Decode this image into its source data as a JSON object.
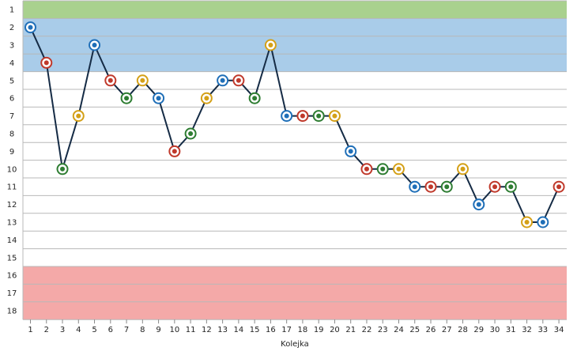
{
  "chart_data": {
    "type": "line",
    "title": "",
    "xlabel": "Kolejka",
    "ylabel": "",
    "x": [
      1,
      2,
      3,
      4,
      5,
      6,
      7,
      8,
      9,
      10,
      11,
      12,
      13,
      14,
      15,
      16,
      17,
      18,
      19,
      20,
      21,
      22,
      23,
      24,
      25,
      26,
      27,
      28,
      29,
      30,
      31,
      32,
      33,
      34
    ],
    "y": [
      2,
      4,
      10,
      7,
      3,
      5,
      6,
      5,
      6,
      9,
      8,
      6,
      5,
      5,
      6,
      3,
      7,
      7,
      7,
      7,
      9,
      10,
      10,
      10,
      11,
      11,
      11,
      10,
      12,
      11,
      11,
      13,
      13,
      11
    ],
    "ylim": [
      1,
      18
    ],
    "y_inverted": true,
    "y_ticks": [
      1,
      2,
      3,
      4,
      5,
      6,
      7,
      8,
      9,
      10,
      11,
      12,
      13,
      14,
      15,
      16,
      17,
      18
    ],
    "x_ticks": [
      1,
      2,
      3,
      4,
      5,
      6,
      7,
      8,
      9,
      10,
      11,
      12,
      13,
      14,
      15,
      16,
      17,
      18,
      19,
      20,
      21,
      22,
      23,
      24,
      25,
      26,
      27,
      28,
      29,
      30,
      31,
      32,
      33,
      34
    ],
    "grid": true,
    "zones": [
      {
        "from": 1,
        "to": 1,
        "color": "#a9d18e"
      },
      {
        "from": 2,
        "to": 4,
        "color": "#a9cce9"
      },
      {
        "from": 16,
        "to": 18,
        "color": "#f4a9a8"
      }
    ],
    "line_color": "#152b45",
    "marker_colors": [
      "#1f6fb8",
      "#c0392b",
      "#2e7d32",
      "#d4a017",
      "#ffffff",
      "#111111"
    ]
  }
}
